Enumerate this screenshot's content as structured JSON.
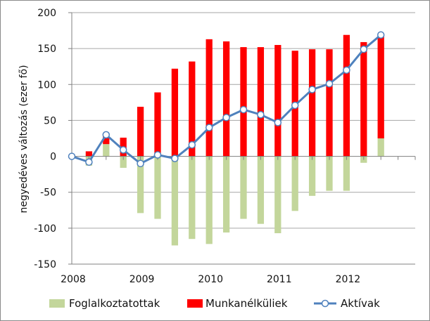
{
  "chart_data": {
    "type": "bar",
    "ylabel": "negyedéves változás (ezer fő)",
    "ylim": [
      -150,
      200
    ],
    "yticks": [
      200,
      150,
      100,
      50,
      0,
      -50,
      -100,
      -150
    ],
    "x_tick_labels": [
      "2008",
      "2009",
      "2010",
      "2011",
      "2012"
    ],
    "grid": "horizontal",
    "legend_position": "bottom",
    "quarters": 20,
    "series": [
      {
        "name": "Foglalkoztatottak",
        "kind": "bar",
        "color": "#c3d69b",
        "values": [
          -13,
          17,
          -16,
          -79,
          -87,
          -124,
          -115,
          -122,
          -106,
          -87,
          -94,
          -107,
          -76,
          -55,
          -48,
          -48,
          -9,
          25
        ]
      },
      {
        "name": "Munkanélküliek",
        "kind": "bar",
        "color": "#ff0000",
        "values": [
          7,
          13,
          26,
          69,
          89,
          122,
          132,
          163,
          160,
          152,
          152,
          155,
          147,
          149,
          149,
          169,
          159,
          146
        ]
      },
      {
        "name": "Aktívak",
        "kind": "line",
        "color": "#4f81bd",
        "values": [
          0,
          -8,
          30,
          9,
          -10,
          2,
          -3,
          16,
          40,
          54,
          65,
          58,
          47,
          71,
          93,
          101,
          120,
          149,
          169
        ]
      }
    ]
  }
}
